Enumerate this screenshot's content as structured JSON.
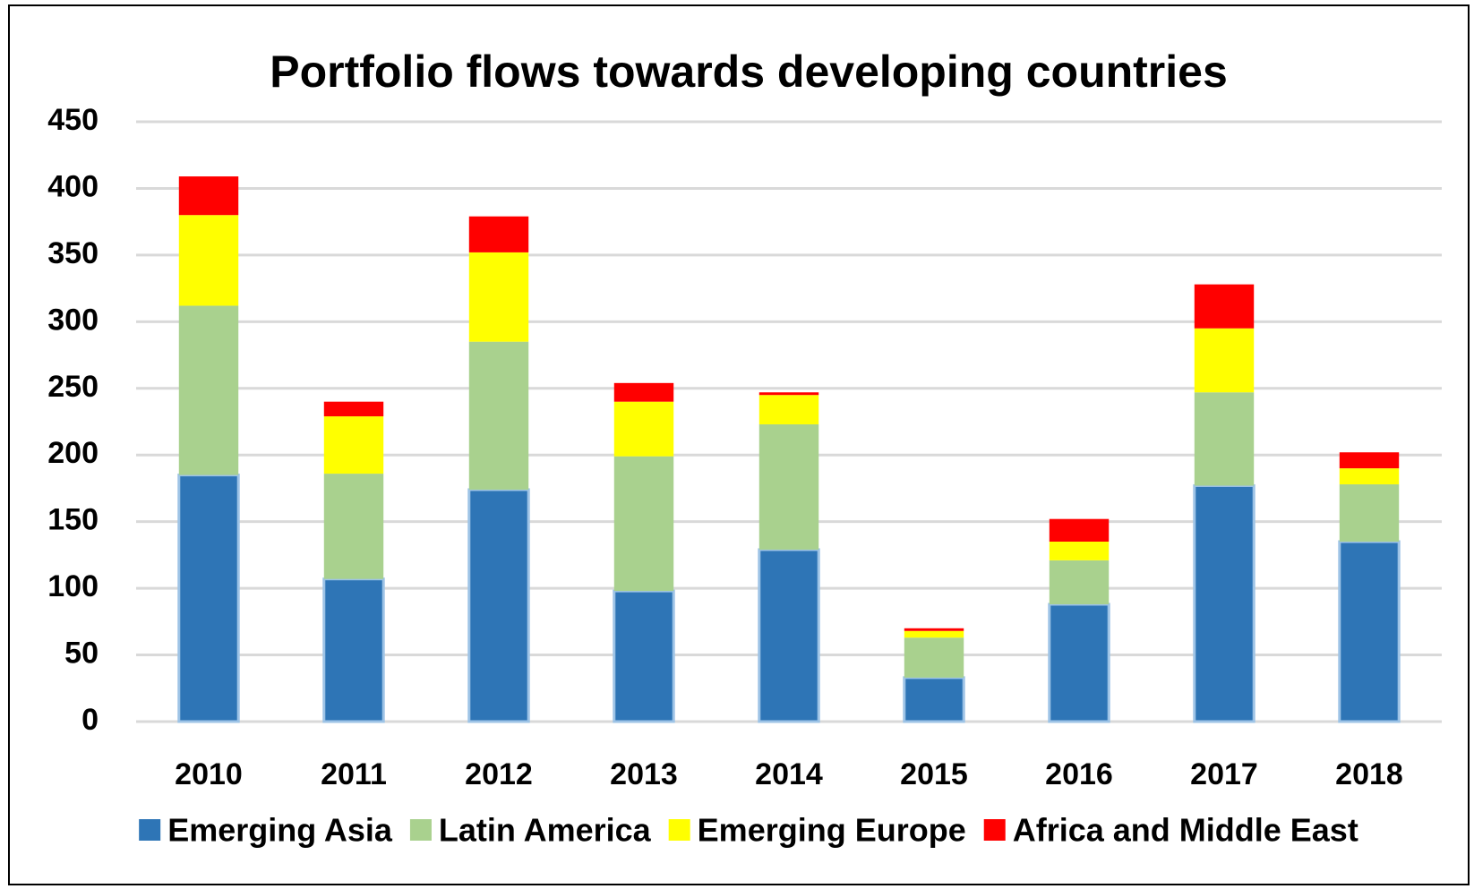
{
  "chart_data": {
    "type": "stacked_bar",
    "title": "Portfolio flows towards developing countries",
    "categories": [
      "2010",
      "2011",
      "2012",
      "2013",
      "2014",
      "2015",
      "2016",
      "2017",
      "2018"
    ],
    "series": [
      {
        "name": "Emerging Asia",
        "color": "#2e75b6",
        "values": [
          185,
          107,
          174,
          98,
          129,
          33,
          88,
          177,
          135
        ]
      },
      {
        "name": "Latin America",
        "color": "#a9d18e",
        "values": [
          127,
          79,
          111,
          101,
          94,
          30,
          33,
          70,
          43
        ]
      },
      {
        "name": "Emerging Europe",
        "color": "#ffff00",
        "values": [
          68,
          43,
          67,
          41,
          22,
          5,
          14,
          48,
          12
        ]
      },
      {
        "name": "Africa and Middle East",
        "color": "#ff0000",
        "values": [
          29,
          11,
          27,
          14,
          2,
          2,
          17,
          33,
          12
        ]
      }
    ],
    "ylim": [
      0,
      450
    ],
    "yticks": [
      0,
      50,
      100,
      150,
      200,
      250,
      300,
      350,
      400,
      450
    ],
    "grid": true
  }
}
